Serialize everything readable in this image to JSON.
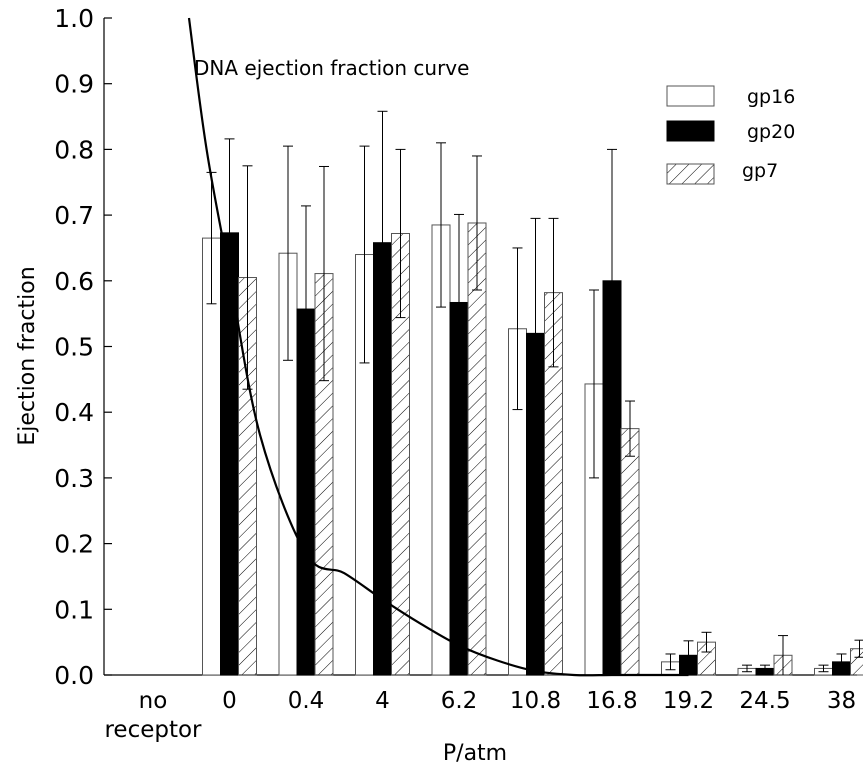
{
  "chart_data": {
    "type": "bar",
    "title": "",
    "xlabel": "P/atm",
    "ylabel": "Ejection fraction",
    "ylim": [
      0,
      1.0
    ],
    "yticks": [
      "0.0",
      "0.1",
      "0.2",
      "0.3",
      "0.4",
      "0.5",
      "0.6",
      "0.7",
      "0.8",
      "0.9",
      "1.0"
    ],
    "categories": [
      "no\nreceptor",
      "0",
      "0.4",
      "4",
      "6.2",
      "10.8",
      "16.8",
      "19.2",
      "24.5",
      "38"
    ],
    "series": [
      {
        "name": "gp16",
        "pattern": "white",
        "values": [
          null,
          0.665,
          0.642,
          0.64,
          0.685,
          0.527,
          0.443,
          0.02,
          0.01,
          0.01
        ],
        "errors": [
          null,
          0.1,
          0.163,
          0.165,
          0.125,
          0.123,
          0.143,
          0.012,
          0.005,
          0.005
        ]
      },
      {
        "name": "gp20",
        "pattern": "black",
        "values": [
          null,
          0.673,
          0.557,
          0.658,
          0.567,
          0.52,
          0.6,
          0.03,
          0.01,
          0.02
        ],
        "errors": [
          null,
          0.143,
          0.157,
          0.2,
          0.134,
          0.175,
          0.2,
          0.022,
          0.005,
          0.012
        ]
      },
      {
        "name": "gp7",
        "pattern": "hatch",
        "values": [
          null,
          0.605,
          0.611,
          0.672,
          0.688,
          0.582,
          0.375,
          0.05,
          0.03,
          0.04
        ],
        "errors": [
          null,
          0.17,
          0.163,
          0.128,
          0.102,
          0.113,
          0.042,
          0.015,
          0.03,
          0.013
        ]
      }
    ],
    "curve": {
      "label": "DNA ejection fraction curve",
      "x": [
        -0.53,
        -0.3,
        0.0,
        0.4,
        1.0,
        1.5,
        2.0,
        2.5,
        3.0,
        3.5,
        4.0,
        4.5,
        5.0,
        5.5,
        6.0
      ],
      "y": [
        1.0,
        0.8,
        0.61,
        0.365,
        0.185,
        0.155,
        0.115,
        0.078,
        0.045,
        0.022,
        0.006,
        0.0,
        0.0,
        0.0,
        0.0
      ]
    },
    "legend_position": "top-right",
    "grid": false
  }
}
